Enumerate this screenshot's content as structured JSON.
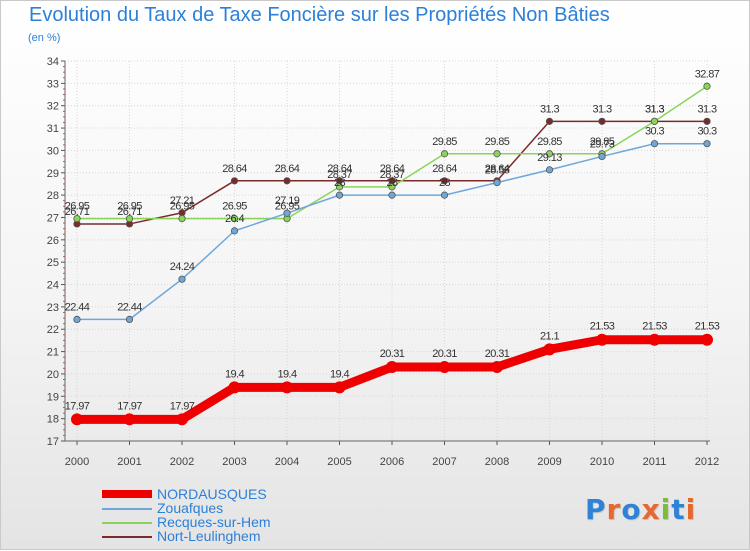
{
  "title": "Evolution du Taux de Taxe Foncière sur les Propriétés Non Bâties",
  "unit_label": "(en %)",
  "logo": {
    "text": "Proxiti",
    "letter_colors": [
      "#2f83d6",
      "#e5692e",
      "#2f83d6",
      "#e5692e",
      "#7bbd3a",
      "#2f83d6",
      "#e5692e"
    ]
  },
  "chart_data": {
    "type": "line",
    "title": "Evolution du Taux de Taxe Foncière sur les Propriétés Non Bâties",
    "ylabel": "(en %)",
    "xlabel": "",
    "categories": [
      "2000",
      "2001",
      "2002",
      "2003",
      "2004",
      "2005",
      "2006",
      "2007",
      "2008",
      "2009",
      "2010",
      "2011",
      "2012"
    ],
    "ylim": [
      17,
      34
    ],
    "yticks": [
      "17",
      "18",
      "19",
      "20",
      "21",
      "22",
      "23",
      "24",
      "25",
      "26",
      "27",
      "28",
      "29",
      "30",
      "31",
      "32",
      "33",
      "34"
    ],
    "grid": true,
    "series": [
      {
        "name": "NORDAUSQUES",
        "color": "#ee0000",
        "values": [
          17.97,
          17.97,
          17.97,
          19.4,
          19.4,
          19.4,
          20.31,
          20.31,
          20.31,
          21.1,
          21.53,
          21.53,
          21.53
        ],
        "labels": [
          "17.97",
          "17.97",
          "17.97",
          "19.4",
          "19.4",
          "19.4",
          "20.31",
          "20.31",
          "20.31",
          "21.1",
          "21.53",
          "21.53",
          "21.53"
        ]
      },
      {
        "name": "Zouafques",
        "color": "#6fa7d9",
        "values": [
          22.44,
          22.44,
          24.24,
          26.4,
          27.19,
          28,
          28,
          28,
          28.56,
          29.13,
          29.73,
          30.3,
          30.3
        ],
        "labels": [
          "22.44",
          "22.44",
          "24.24",
          "26.4",
          "27.19",
          "28",
          "28",
          "28",
          "28.56",
          "29.13",
          "29.73",
          "30.3",
          "30.3"
        ]
      },
      {
        "name": "Recques-sur-Hem",
        "color": "#8ad45a",
        "values": [
          26.95,
          26.95,
          26.95,
          26.95,
          26.95,
          28.37,
          28.37,
          29.85,
          29.85,
          29.85,
          29.85,
          31.3,
          32.87
        ],
        "labels": [
          "26.95",
          "26.95",
          "26.95",
          "26.95",
          "26.95",
          "28.37",
          "28.37",
          "29.85",
          "29.85",
          "29.85",
          "29.85",
          "31.3",
          "32.87"
        ]
      },
      {
        "name": "Nort-Leulinghem",
        "color": "#7a2a2a",
        "values": [
          26.71,
          26.71,
          27.21,
          28.64,
          28.64,
          28.64,
          28.64,
          28.64,
          28.64,
          31.3,
          31.3,
          31.3,
          31.3
        ],
        "labels": [
          "26.71",
          "26.71",
          "27.21",
          "28.64",
          "28.64",
          "28.64",
          "28.64",
          "28.64",
          "28.64",
          "31.3",
          "31.3",
          "31.3",
          "31.3"
        ]
      }
    ],
    "legend_position": "bottom-left"
  }
}
